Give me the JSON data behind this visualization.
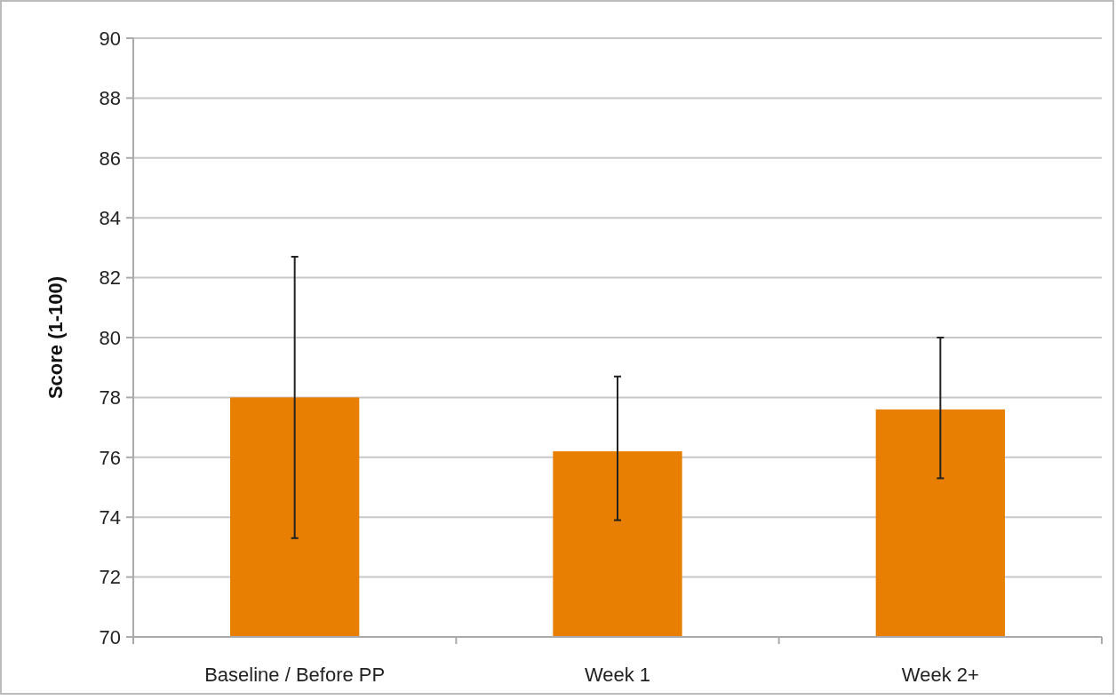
{
  "chart_data": {
    "type": "bar",
    "ylabel": "Score (1-100)",
    "categories": [
      "Baseline / Before PP",
      "Week 1",
      "Week 2+"
    ],
    "values": [
      78.0,
      76.2,
      77.6
    ],
    "errors": [
      [
        73.3,
        82.7
      ],
      [
        73.9,
        78.7
      ],
      [
        75.3,
        80.0
      ]
    ],
    "color": "#e97f02",
    "ylim": [
      70,
      90
    ],
    "yticks": [
      70,
      72,
      74,
      76,
      78,
      80,
      82,
      84,
      86,
      88,
      90
    ],
    "grid": "y"
  }
}
